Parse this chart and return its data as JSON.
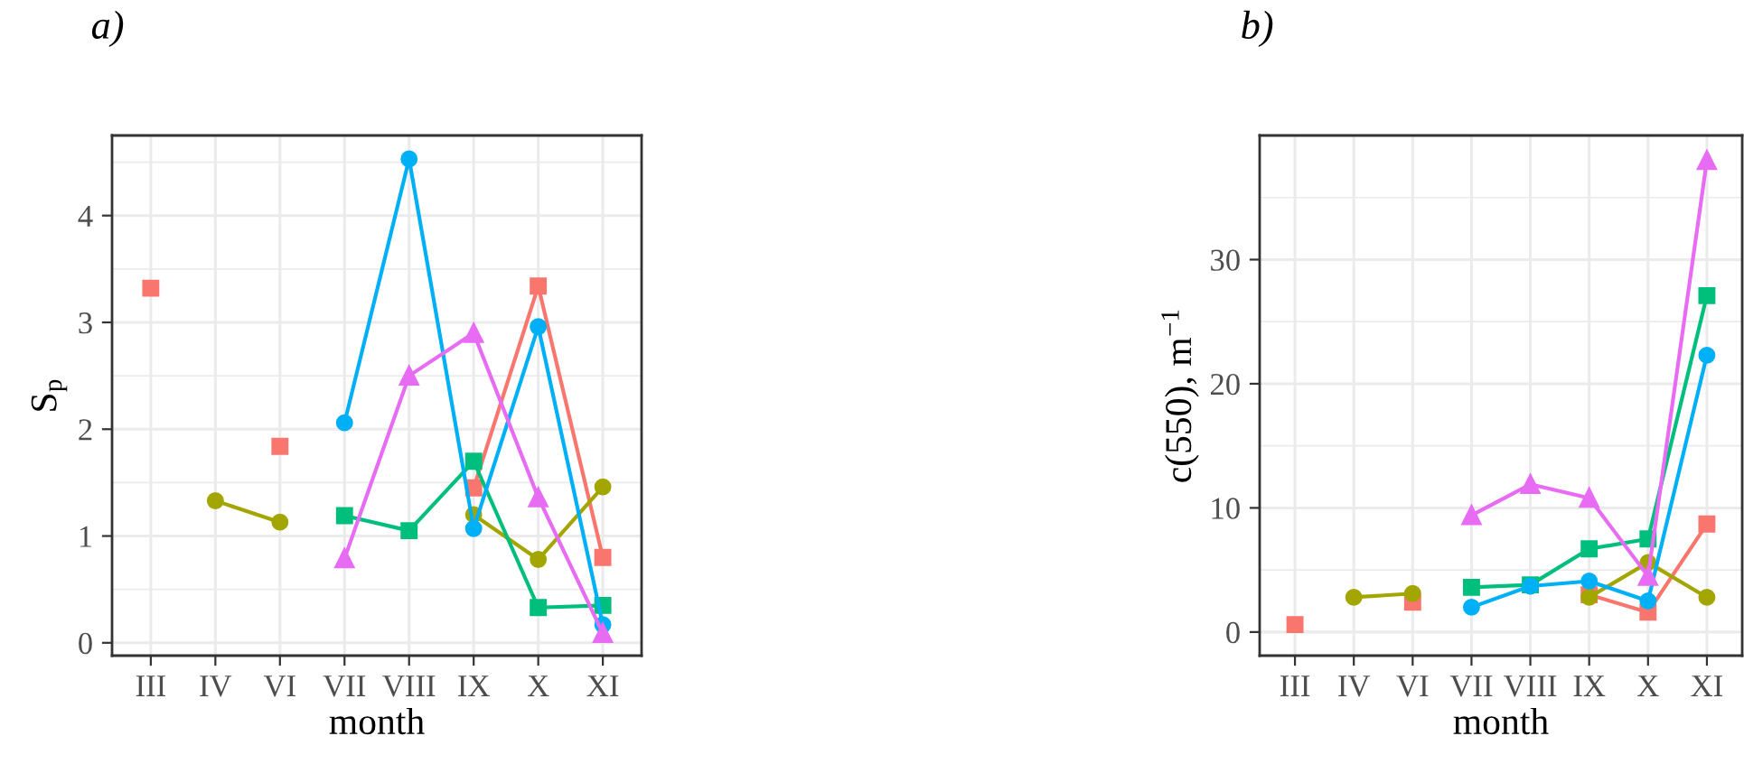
{
  "chart_data": [
    {
      "type": "line",
      "title": "a)",
      "xlabel": "month",
      "ylabel": "S$_{p}$",
      "categories": [
        "III",
        "IV",
        "VI",
        "VII",
        "VIII",
        "IX",
        "X",
        "XI"
      ],
      "ylim": [
        -0.12,
        4.75
      ],
      "yticks": [
        0,
        1,
        2,
        3,
        4
      ],
      "grid": true,
      "series": [
        {
          "color": "#f8766d",
          "marker": "square",
          "values": [
            3.32,
            null,
            1.84,
            null,
            null,
            1.45,
            3.34,
            0.8
          ]
        },
        {
          "color": "#a3a500",
          "marker": "circle",
          "values": [
            null,
            1.33,
            1.13,
            null,
            null,
            1.2,
            0.78,
            1.46
          ]
        },
        {
          "color": "#00bf7d",
          "marker": "square",
          "values": [
            null,
            null,
            null,
            1.19,
            1.05,
            1.7,
            0.33,
            0.35
          ]
        },
        {
          "color": "#00b0f6",
          "marker": "circle",
          "values": [
            null,
            null,
            null,
            2.06,
            4.53,
            1.07,
            2.96,
            0.17
          ]
        },
        {
          "color": "#e76bf3",
          "marker": "triangle",
          "values": [
            null,
            null,
            null,
            0.79,
            2.5,
            2.9,
            1.36,
            0.09
          ]
        }
      ]
    },
    {
      "type": "line",
      "title": "b)",
      "xlabel": "month",
      "ylabel": "c(550), m$^{−1}$",
      "categories": [
        "III",
        "IV",
        "VI",
        "VII",
        "VIII",
        "IX",
        "X",
        "XI"
      ],
      "ylim": [
        -1.9,
        40
      ],
      "yticks": [
        0,
        10,
        20,
        30
      ],
      "grid": true,
      "series": [
        {
          "color": "#f8766d",
          "marker": "square",
          "values": [
            0.6,
            null,
            2.4,
            null,
            null,
            3.0,
            1.6,
            8.7
          ]
        },
        {
          "color": "#a3a500",
          "marker": "circle",
          "values": [
            null,
            2.8,
            3.1,
            null,
            null,
            2.8,
            5.6,
            2.8
          ]
        },
        {
          "color": "#00bf7d",
          "marker": "square",
          "values": [
            null,
            null,
            null,
            3.6,
            3.8,
            6.7,
            7.5,
            27.1
          ]
        },
        {
          "color": "#00b0f6",
          "marker": "circle",
          "values": [
            null,
            null,
            null,
            2.0,
            3.7,
            4.1,
            2.5,
            22.3
          ]
        },
        {
          "color": "#e76bf3",
          "marker": "triangle",
          "values": [
            null,
            null,
            null,
            9.4,
            11.9,
            10.8,
            4.5,
            38.0
          ]
        }
      ]
    }
  ]
}
